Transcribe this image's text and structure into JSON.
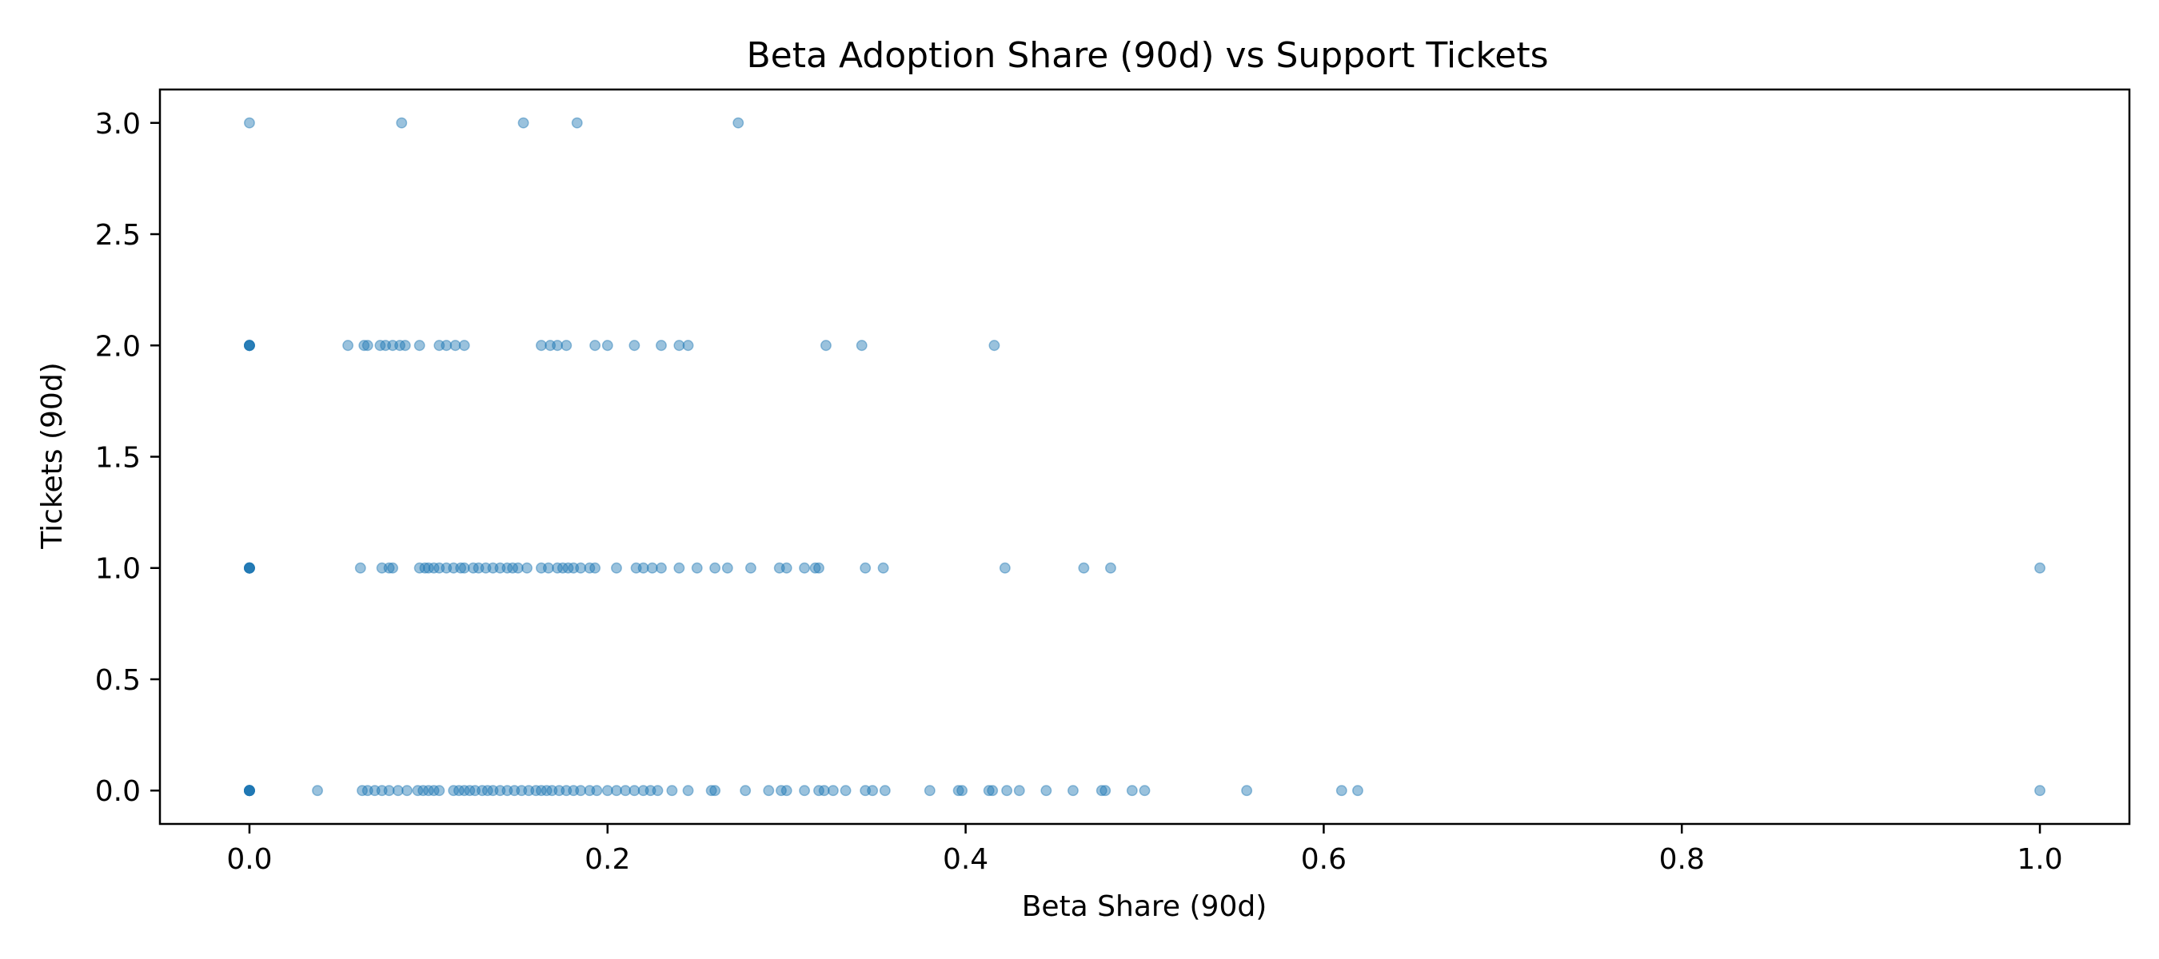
{
  "chart_data": {
    "type": "scatter",
    "title": "Beta Adoption Share (90d) vs Support Tickets",
    "xlabel": "Beta Share (90d)",
    "ylabel": "Tickets (90d)",
    "xlim": [
      -0.05,
      1.05
    ],
    "ylim": [
      -0.15,
      3.15
    ],
    "xticks": [
      0.0,
      0.2,
      0.4,
      0.6,
      0.8,
      1.0
    ],
    "xtick_labels": [
      "0.0",
      "0.2",
      "0.4",
      "0.6",
      "0.8",
      "1.0"
    ],
    "yticks": [
      0.0,
      0.5,
      1.0,
      1.5,
      2.0,
      2.5,
      3.0
    ],
    "ytick_labels": [
      "0.0",
      "0.5",
      "1.0",
      "1.5",
      "2.0",
      "2.5",
      "3.0"
    ],
    "grid": false,
    "legend": "none",
    "marker_color": "#1f77b4",
    "marker_alpha": 0.45,
    "series": [
      {
        "points": [
          [
            0.0,
            3
          ],
          [
            0.085,
            3
          ],
          [
            0.153,
            3
          ],
          [
            0.183,
            3
          ],
          [
            0.273,
            3
          ],
          [
            0.0,
            2
          ],
          [
            0.0,
            2
          ],
          [
            0.0,
            2
          ],
          [
            0.0,
            2
          ],
          [
            0.0,
            2
          ],
          [
            0.055,
            2
          ],
          [
            0.064,
            2
          ],
          [
            0.066,
            2
          ],
          [
            0.073,
            2
          ],
          [
            0.076,
            2
          ],
          [
            0.08,
            2
          ],
          [
            0.084,
            2
          ],
          [
            0.087,
            2
          ],
          [
            0.095,
            2
          ],
          [
            0.106,
            2
          ],
          [
            0.11,
            2
          ],
          [
            0.115,
            2
          ],
          [
            0.12,
            2
          ],
          [
            0.163,
            2
          ],
          [
            0.168,
            2
          ],
          [
            0.172,
            2
          ],
          [
            0.177,
            2
          ],
          [
            0.193,
            2
          ],
          [
            0.2,
            2
          ],
          [
            0.215,
            2
          ],
          [
            0.23,
            2
          ],
          [
            0.24,
            2
          ],
          [
            0.245,
            2
          ],
          [
            0.322,
            2
          ],
          [
            0.342,
            2
          ],
          [
            0.416,
            2
          ],
          [
            0.0,
            1
          ],
          [
            0.0,
            1
          ],
          [
            0.0,
            1
          ],
          [
            0.0,
            1
          ],
          [
            0.0,
            1
          ],
          [
            0.0,
            1
          ],
          [
            0.062,
            1
          ],
          [
            0.074,
            1
          ],
          [
            0.078,
            1
          ],
          [
            0.08,
            1
          ],
          [
            0.095,
            1
          ],
          [
            0.098,
            1
          ],
          [
            0.1,
            1
          ],
          [
            0.103,
            1
          ],
          [
            0.106,
            1
          ],
          [
            0.11,
            1
          ],
          [
            0.114,
            1
          ],
          [
            0.118,
            1
          ],
          [
            0.12,
            1
          ],
          [
            0.125,
            1
          ],
          [
            0.128,
            1
          ],
          [
            0.132,
            1
          ],
          [
            0.136,
            1
          ],
          [
            0.14,
            1
          ],
          [
            0.144,
            1
          ],
          [
            0.147,
            1
          ],
          [
            0.15,
            1
          ],
          [
            0.155,
            1
          ],
          [
            0.163,
            1
          ],
          [
            0.167,
            1
          ],
          [
            0.172,
            1
          ],
          [
            0.175,
            1
          ],
          [
            0.178,
            1
          ],
          [
            0.181,
            1
          ],
          [
            0.185,
            1
          ],
          [
            0.19,
            1
          ],
          [
            0.193,
            1
          ],
          [
            0.205,
            1
          ],
          [
            0.216,
            1
          ],
          [
            0.22,
            1
          ],
          [
            0.225,
            1
          ],
          [
            0.23,
            1
          ],
          [
            0.24,
            1
          ],
          [
            0.25,
            1
          ],
          [
            0.26,
            1
          ],
          [
            0.267,
            1
          ],
          [
            0.28,
            1
          ],
          [
            0.296,
            1
          ],
          [
            0.3,
            1
          ],
          [
            0.31,
            1
          ],
          [
            0.316,
            1
          ],
          [
            0.318,
            1
          ],
          [
            0.344,
            1
          ],
          [
            0.354,
            1
          ],
          [
            0.422,
            1
          ],
          [
            0.466,
            1
          ],
          [
            0.481,
            1
          ],
          [
            1.0,
            1
          ],
          [
            0.0,
            0
          ],
          [
            0.0,
            0
          ],
          [
            0.0,
            0
          ],
          [
            0.0,
            0
          ],
          [
            0.0,
            0
          ],
          [
            0.0,
            0
          ],
          [
            0.0,
            0
          ],
          [
            0.0,
            0
          ],
          [
            0.038,
            0
          ],
          [
            0.063,
            0
          ],
          [
            0.066,
            0
          ],
          [
            0.07,
            0
          ],
          [
            0.074,
            0
          ],
          [
            0.078,
            0
          ],
          [
            0.083,
            0
          ],
          [
            0.088,
            0
          ],
          [
            0.094,
            0
          ],
          [
            0.097,
            0
          ],
          [
            0.1,
            0
          ],
          [
            0.103,
            0
          ],
          [
            0.106,
            0
          ],
          [
            0.114,
            0
          ],
          [
            0.117,
            0
          ],
          [
            0.12,
            0
          ],
          [
            0.123,
            0
          ],
          [
            0.126,
            0
          ],
          [
            0.13,
            0
          ],
          [
            0.133,
            0
          ],
          [
            0.136,
            0
          ],
          [
            0.14,
            0
          ],
          [
            0.144,
            0
          ],
          [
            0.148,
            0
          ],
          [
            0.152,
            0
          ],
          [
            0.156,
            0
          ],
          [
            0.16,
            0
          ],
          [
            0.163,
            0
          ],
          [
            0.166,
            0
          ],
          [
            0.169,
            0
          ],
          [
            0.173,
            0
          ],
          [
            0.177,
            0
          ],
          [
            0.181,
            0
          ],
          [
            0.185,
            0
          ],
          [
            0.19,
            0
          ],
          [
            0.194,
            0
          ],
          [
            0.2,
            0
          ],
          [
            0.205,
            0
          ],
          [
            0.21,
            0
          ],
          [
            0.215,
            0
          ],
          [
            0.22,
            0
          ],
          [
            0.224,
            0
          ],
          [
            0.228,
            0
          ],
          [
            0.236,
            0
          ],
          [
            0.245,
            0
          ],
          [
            0.258,
            0
          ],
          [
            0.26,
            0
          ],
          [
            0.277,
            0
          ],
          [
            0.29,
            0
          ],
          [
            0.297,
            0
          ],
          [
            0.3,
            0
          ],
          [
            0.31,
            0
          ],
          [
            0.318,
            0
          ],
          [
            0.321,
            0
          ],
          [
            0.326,
            0
          ],
          [
            0.333,
            0
          ],
          [
            0.344,
            0
          ],
          [
            0.348,
            0
          ],
          [
            0.355,
            0
          ],
          [
            0.38,
            0
          ],
          [
            0.396,
            0
          ],
          [
            0.398,
            0
          ],
          [
            0.413,
            0
          ],
          [
            0.415,
            0
          ],
          [
            0.423,
            0
          ],
          [
            0.43,
            0
          ],
          [
            0.445,
            0
          ],
          [
            0.46,
            0
          ],
          [
            0.476,
            0
          ],
          [
            0.478,
            0
          ],
          [
            0.493,
            0
          ],
          [
            0.5,
            0
          ],
          [
            0.557,
            0
          ],
          [
            0.61,
            0
          ],
          [
            0.619,
            0
          ],
          [
            1.0,
            0
          ]
        ]
      }
    ]
  }
}
